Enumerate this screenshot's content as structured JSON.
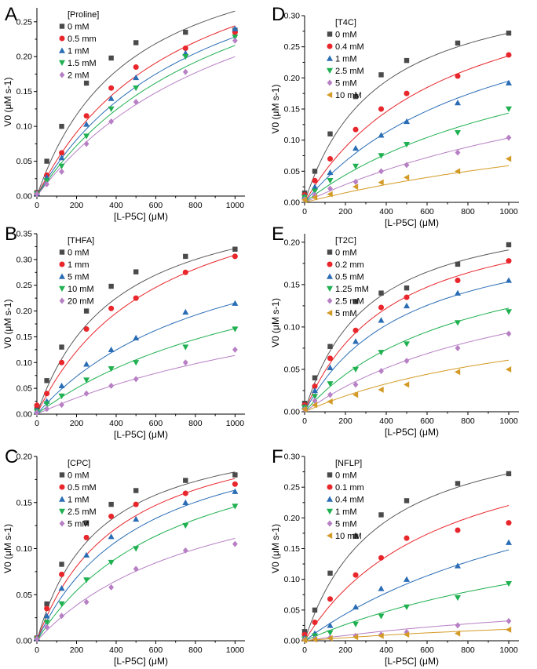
{
  "colors": {
    "black": "#4a4a4a",
    "red": "#e8262b",
    "blue": "#2a6db5",
    "green": "#1fb050",
    "purple": "#b77fc4",
    "orange": "#d39b26",
    "fit_black": "#595959",
    "fit_red": "#e8262b",
    "fit_blue": "#2a6db5",
    "fit_green": "#1fb050",
    "fit_purple": "#b77fc4",
    "fit_orange": "#d39b26"
  },
  "chart_data": [
    {
      "type": "scatter",
      "panel": "A",
      "title": "",
      "legend_title": "[Proline]",
      "xlabel": "[L-P5C] (μM)",
      "ylabel": "V0 (μM s-1)",
      "xlim": [
        0,
        1050
      ],
      "ylim": [
        0,
        0.27
      ],
      "xticks": [
        0,
        200,
        400,
        600,
        800,
        1000
      ],
      "xtick_labels": [
        "0",
        "200",
        "400",
        "600",
        "800",
        "1000"
      ],
      "yticks": [
        0,
        0.05,
        0.1,
        0.15,
        0.2,
        0.25
      ],
      "ytick_labels": [
        "0.00",
        "0.05",
        "0.10",
        "0.15",
        "0.20",
        "0.25"
      ],
      "x": [
        0,
        50,
        125,
        250,
        375,
        500,
        750,
        1000
      ],
      "series": [
        {
          "name": "0 mM",
          "marker": "square",
          "color": "black",
          "fit_color": "fit_black",
          "values": [
            0.005,
            0.05,
            0.1,
            0.162,
            0.198,
            0.22,
            0.235,
            0.238
          ],
          "fit": {
            "vmax": 0.39,
            "km": 470
          }
        },
        {
          "name": "0.5 mm",
          "marker": "circle",
          "color": "red",
          "fit_color": "fit_red",
          "values": [
            0.004,
            0.03,
            0.062,
            0.115,
            0.155,
            0.185,
            0.212,
            0.235
          ],
          "fit": {
            "vmax": 0.42,
            "km": 720
          }
        },
        {
          "name": "1 mM",
          "marker": "triangle-up",
          "color": "blue",
          "fit_color": "fit_blue",
          "values": [
            0.004,
            0.027,
            0.055,
            0.103,
            0.14,
            0.17,
            0.205,
            0.24
          ],
          "fit": {
            "vmax": 0.42,
            "km": 840
          }
        },
        {
          "name": "1.5 mM",
          "marker": "triangle-down",
          "color": "green",
          "fit_color": "fit_green",
          "values": [
            0.003,
            0.022,
            0.043,
            0.086,
            0.125,
            0.155,
            0.2,
            0.228
          ],
          "fit": {
            "vmax": 0.43,
            "km": 990
          }
        },
        {
          "name": "2 mM",
          "marker": "diamond",
          "color": "purple",
          "fit_color": "fit_purple",
          "values": [
            0.003,
            0.017,
            0.035,
            0.075,
            0.107,
            0.135,
            0.178,
            0.223
          ],
          "fit": {
            "vmax": 0.42,
            "km": 1100
          }
        }
      ]
    },
    {
      "type": "scatter",
      "panel": "B",
      "title": "",
      "legend_title": "[THFA]",
      "xlabel": "[L-P5C] (μM)",
      "ylabel": "V0 (μM s-1)",
      "xlim": [
        0,
        1050
      ],
      "ylim": [
        0,
        0.35
      ],
      "xticks": [
        0,
        200,
        400,
        600,
        800,
        1000
      ],
      "xtick_labels": [
        "0",
        "200",
        "400",
        "600",
        "800",
        "1000"
      ],
      "yticks": [
        0,
        0.05,
        0.1,
        0.15,
        0.2,
        0.25,
        0.3,
        0.35
      ],
      "ytick_labels": [
        "0.00",
        "0.05",
        "0.10",
        "0.15",
        "0.20",
        "0.25",
        "0.30",
        "0.35"
      ],
      "x": [
        0,
        50,
        125,
        250,
        375,
        500,
        750,
        1000
      ],
      "series": [
        {
          "name": "0 mM",
          "marker": "square",
          "color": "black",
          "fit_color": "fit_black",
          "values": [
            0.015,
            0.065,
            0.13,
            0.2,
            0.248,
            0.276,
            0.306,
            0.32
          ],
          "fit": {
            "vmax": 0.45,
            "km": 400
          }
        },
        {
          "name": "1 mm",
          "marker": "circle",
          "color": "red",
          "fit_color": "fit_red",
          "values": [
            0.017,
            0.04,
            0.1,
            0.165,
            0.205,
            0.225,
            0.275,
            0.306
          ],
          "fit": {
            "vmax": 0.5,
            "km": 620
          }
        },
        {
          "name": "5 mM",
          "marker": "triangle-up",
          "color": "blue",
          "fit_color": "fit_blue",
          "values": [
            0.007,
            0.025,
            0.055,
            0.097,
            0.125,
            0.148,
            0.198,
            0.215
          ],
          "fit": {
            "vmax": 0.42,
            "km": 950
          }
        },
        {
          "name": "10 mM",
          "marker": "triangle-down",
          "color": "green",
          "fit_color": "fit_green",
          "values": [
            0.005,
            0.02,
            0.035,
            0.066,
            0.088,
            0.1,
            0.13,
            0.165
          ],
          "fit": {
            "vmax": 0.39,
            "km": 1350
          }
        },
        {
          "name": "20 mM",
          "marker": "diamond",
          "color": "purple",
          "fit_color": "fit_purple",
          "values": [
            0.003,
            0.01,
            0.018,
            0.04,
            0.055,
            0.068,
            0.1,
            0.125
          ],
          "fit": {
            "vmax": 0.33,
            "km": 1900
          }
        }
      ]
    },
    {
      "type": "scatter",
      "panel": "C",
      "title": "",
      "legend_title": "[CPC]",
      "xlabel": "[L-P5C] (μM)",
      "ylabel": "V0 (μM s-1)",
      "xlim": [
        0,
        1050
      ],
      "ylim": [
        0,
        0.2
      ],
      "xticks": [
        0,
        200,
        400,
        600,
        800,
        1000
      ],
      "xtick_labels": [
        "0",
        "200",
        "400",
        "600",
        "800",
        "1000"
      ],
      "yticks": [
        0,
        0.05,
        0.1,
        0.15,
        0.2
      ],
      "ytick_labels": [
        "0.00",
        "0.05",
        "0.10",
        "0.15",
        "0.20"
      ],
      "x": [
        0,
        50,
        125,
        250,
        375,
        500,
        750,
        1000
      ],
      "series": [
        {
          "name": "0 mM",
          "marker": "square",
          "color": "black",
          "fit_color": "fit_black",
          "values": [
            0.003,
            0.04,
            0.083,
            0.128,
            0.148,
            0.163,
            0.174,
            0.18
          ],
          "fit": {
            "vmax": 0.24,
            "km": 310
          }
        },
        {
          "name": "0.5 mM",
          "marker": "circle",
          "color": "red",
          "fit_color": "fit_red",
          "values": [
            0.003,
            0.035,
            0.072,
            0.112,
            0.135,
            0.148,
            0.16,
            0.17
          ],
          "fit": {
            "vmax": 0.25,
            "km": 420
          }
        },
        {
          "name": "1 mM",
          "marker": "triangle-up",
          "color": "blue",
          "fit_color": "fit_blue",
          "values": [
            0.003,
            0.027,
            0.057,
            0.093,
            0.113,
            0.132,
            0.15,
            0.162
          ],
          "fit": {
            "vmax": 0.25,
            "km": 530
          }
        },
        {
          "name": "2.5 mM",
          "marker": "triangle-down",
          "color": "green",
          "fit_color": "fit_green",
          "values": [
            0.002,
            0.02,
            0.04,
            0.066,
            0.085,
            0.1,
            0.125,
            0.146
          ],
          "fit": {
            "vmax": 0.25,
            "km": 720
          }
        },
        {
          "name": "5 mM",
          "marker": "diamond",
          "color": "purple",
          "fit_color": "fit_purple",
          "values": [
            0.002,
            0.015,
            0.027,
            0.042,
            0.058,
            0.078,
            0.098,
            0.105
          ],
          "fit": {
            "vmax": 0.21,
            "km": 890
          }
        }
      ]
    },
    {
      "type": "scatter",
      "panel": "D",
      "title": "",
      "legend_title": "[T4C]",
      "xlabel": "[L-P5C] (μM)",
      "ylabel": "V0 (μM s-1)",
      "xlim": [
        0,
        1050
      ],
      "ylim": [
        0,
        0.3
      ],
      "xticks": [
        0,
        200,
        400,
        600,
        800,
        1000
      ],
      "xtick_labels": [
        "0",
        "200",
        "400",
        "600",
        "800",
        "1000"
      ],
      "yticks": [
        0,
        0.05,
        0.1,
        0.15,
        0.2,
        0.25,
        0.3
      ],
      "ytick_labels": [
        "0.00",
        "0.05",
        "0.10",
        "0.15",
        "0.20",
        "0.25",
        "0.30"
      ],
      "x": [
        0,
        50,
        125,
        250,
        375,
        500,
        750,
        1000
      ],
      "series": [
        {
          "name": "0 mM",
          "marker": "square",
          "color": "black",
          "fit_color": "fit_black",
          "values": [
            0.015,
            0.05,
            0.11,
            0.17,
            0.205,
            0.228,
            0.256,
            0.272
          ],
          "fit": {
            "vmax": 0.37,
            "km": 360
          }
        },
        {
          "name": "0.4 mM",
          "marker": "circle",
          "color": "red",
          "fit_color": "fit_red",
          "values": [
            0.012,
            0.035,
            0.07,
            0.117,
            0.15,
            0.175,
            0.203,
            0.237
          ],
          "fit": {
            "vmax": 0.4,
            "km": 700
          }
        },
        {
          "name": "1 mM",
          "marker": "triangle-up",
          "color": "blue",
          "fit_color": "fit_blue",
          "values": [
            0.01,
            0.025,
            0.048,
            0.087,
            0.108,
            0.13,
            0.16,
            0.192
          ],
          "fit": {
            "vmax": 0.38,
            "km": 950
          }
        },
        {
          "name": "2.5 mM",
          "marker": "triangle-down",
          "color": "green",
          "fit_color": "fit_green",
          "values": [
            0.008,
            0.018,
            0.035,
            0.058,
            0.075,
            0.093,
            0.112,
            0.15
          ],
          "fit": {
            "vmax": 0.33,
            "km": 1300
          }
        },
        {
          "name": "5 mM",
          "marker": "diamond",
          "color": "purple",
          "fit_color": "fit_purple",
          "values": [
            0.005,
            0.012,
            0.022,
            0.033,
            0.05,
            0.06,
            0.08,
            0.104
          ],
          "fit": {
            "vmax": 0.3,
            "km": 1900
          }
        },
        {
          "name": "10 mM",
          "marker": "triangle-left",
          "color": "orange",
          "fit_color": "fit_orange",
          "values": [
            0.004,
            0.008,
            0.013,
            0.025,
            0.032,
            0.04,
            0.05,
            0.07
          ],
          "fit": {
            "vmax": 0.2,
            "km": 2400
          }
        }
      ]
    },
    {
      "type": "scatter",
      "panel": "E",
      "title": "",
      "legend_title": "[T2C]",
      "xlabel": "[L-P5C] (μM)",
      "ylabel": "V0 (μM s-1)",
      "xlim": [
        0,
        1050
      ],
      "ylim": [
        0,
        0.21
      ],
      "xticks": [
        0,
        200,
        400,
        600,
        800,
        1000
      ],
      "xtick_labels": [
        "0",
        "200",
        "400",
        "600",
        "800",
        "1000"
      ],
      "yticks": [
        0,
        0.05,
        0.1,
        0.15,
        0.2
      ],
      "ytick_labels": [
        "0.00",
        "0.05",
        "0.10",
        "0.15",
        "0.20"
      ],
      "x": [
        0,
        50,
        125,
        250,
        375,
        500,
        750,
        1000
      ],
      "series": [
        {
          "name": "0 mM",
          "marker": "square",
          "color": "black",
          "fit_color": "fit_black",
          "values": [
            0.01,
            0.04,
            0.077,
            0.13,
            0.14,
            0.146,
            0.174,
            0.197
          ],
          "fit": {
            "vmax": 0.25,
            "km": 310
          }
        },
        {
          "name": "0.2 mm",
          "marker": "circle",
          "color": "red",
          "fit_color": "fit_red",
          "values": [
            0.008,
            0.03,
            0.063,
            0.096,
            0.123,
            0.135,
            0.155,
            0.178
          ],
          "fit": {
            "vmax": 0.25,
            "km": 420
          }
        },
        {
          "name": "0.5 mM",
          "marker": "triangle-up",
          "color": "blue",
          "fit_color": "fit_blue",
          "values": [
            0.006,
            0.025,
            0.052,
            0.083,
            0.108,
            0.125,
            0.14,
            0.155
          ],
          "fit": {
            "vmax": 0.23,
            "km": 500
          }
        },
        {
          "name": "1.25 mM",
          "marker": "triangle-down",
          "color": "green",
          "fit_color": "fit_green",
          "values": [
            0.005,
            0.018,
            0.033,
            0.05,
            0.07,
            0.08,
            0.105,
            0.118
          ],
          "fit": {
            "vmax": 0.22,
            "km": 800
          }
        },
        {
          "name": "2.5 mM",
          "marker": "diamond",
          "color": "purple",
          "fit_color": "fit_purple",
          "values": [
            0.003,
            0.013,
            0.02,
            0.032,
            0.048,
            0.06,
            0.075,
            0.092
          ],
          "fit": {
            "vmax": 0.2,
            "km": 1150
          }
        },
        {
          "name": "5 mM",
          "marker": "triangle-left",
          "color": "orange",
          "fit_color": "fit_orange",
          "values": [
            0.003,
            0.008,
            0.012,
            0.02,
            0.026,
            0.032,
            0.047,
            0.05
          ],
          "fit": {
            "vmax": 0.14,
            "km": 1300
          }
        }
      ]
    },
    {
      "type": "scatter",
      "panel": "F",
      "title": "",
      "legend_title": "[NFLP]",
      "xlabel": "[L-P5C] (μM)",
      "ylabel": "V0 (μM s-1)",
      "xlim": [
        0,
        1050
      ],
      "ylim": [
        0,
        0.3
      ],
      "xticks": [
        0,
        200,
        400,
        600,
        800,
        1000
      ],
      "xtick_labels": [
        "0",
        "200",
        "400",
        "600",
        "800",
        "1000"
      ],
      "yticks": [
        0,
        0.05,
        0.1,
        0.15,
        0.2,
        0.25,
        0.3
      ],
      "ytick_labels": [
        "0.00",
        "0.05",
        "0.10",
        "0.15",
        "0.20",
        "0.25",
        "0.30"
      ],
      "x": [
        0,
        50,
        125,
        250,
        375,
        500,
        750,
        1000
      ],
      "series": [
        {
          "name": "0 mM",
          "marker": "square",
          "color": "black",
          "fit_color": "fit_black",
          "values": [
            0.015,
            0.05,
            0.11,
            0.17,
            0.205,
            0.228,
            0.256,
            0.272
          ],
          "fit": {
            "vmax": 0.37,
            "km": 360
          }
        },
        {
          "name": "0.1 mm",
          "marker": "circle",
          "color": "red",
          "fit_color": "fit_red",
          "values": [
            0.01,
            0.03,
            0.068,
            0.107,
            0.135,
            0.167,
            0.18,
            0.192
          ],
          "fit": {
            "vmax": 0.37,
            "km": 680
          }
        },
        {
          "name": "0.4 mM",
          "marker": "triangle-up",
          "color": "blue",
          "fit_color": "fit_blue",
          "values": [
            0.005,
            0.012,
            0.025,
            0.055,
            0.085,
            0.1,
            0.122,
            0.16
          ],
          "fit": {
            "vmax": 0.37,
            "km": 1500
          }
        },
        {
          "name": "1 mM",
          "marker": "triangle-down",
          "color": "green",
          "fit_color": "fit_green",
          "values": [
            0.003,
            0.008,
            0.013,
            0.027,
            0.04,
            0.055,
            0.07,
            0.093
          ],
          "fit": {
            "vmax": 0.25,
            "km": 1700
          }
        },
        {
          "name": "5 mM",
          "marker": "diamond",
          "color": "purple",
          "fit_color": "fit_purple",
          "values": [
            0.002,
            0.003,
            0.005,
            0.008,
            0.01,
            0.014,
            0.025,
            0.032
          ],
          "fit": {
            "vmax": 0.1,
            "km": 2100
          }
        },
        {
          "name": "10 mM",
          "marker": "triangle-left",
          "color": "orange",
          "fit_color": "fit_orange",
          "values": [
            0.001,
            0.002,
            0.004,
            0.006,
            0.008,
            0.01,
            0.012,
            0.018
          ],
          "fit": {
            "vmax": 0.06,
            "km": 2200
          }
        }
      ]
    }
  ]
}
